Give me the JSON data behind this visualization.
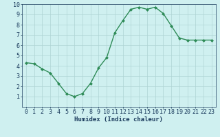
{
  "x": [
    0,
    1,
    2,
    3,
    4,
    5,
    6,
    7,
    8,
    9,
    10,
    11,
    12,
    13,
    14,
    15,
    16,
    17,
    18,
    19,
    20,
    21,
    22,
    23
  ],
  "y": [
    4.3,
    4.2,
    3.7,
    3.3,
    2.3,
    1.3,
    1.0,
    1.3,
    2.3,
    3.8,
    4.8,
    7.2,
    8.4,
    9.5,
    9.7,
    9.5,
    9.7,
    9.1,
    7.9,
    6.7,
    6.5,
    6.5,
    6.5,
    6.5
  ],
  "line_color": "#2e8b57",
  "marker": "D",
  "marker_size": 2.0,
  "line_width": 1.0,
  "bg_color": "#cff0f0",
  "grid_color": "#aed4d4",
  "xlabel": "Humidex (Indice chaleur)",
  "xlim": [
    -0.5,
    23.5
  ],
  "ylim": [
    0,
    10
  ],
  "xticks": [
    0,
    1,
    2,
    3,
    4,
    5,
    6,
    7,
    8,
    9,
    10,
    11,
    12,
    13,
    14,
    15,
    16,
    17,
    18,
    19,
    20,
    21,
    22,
    23
  ],
  "yticks": [
    1,
    2,
    3,
    4,
    5,
    6,
    7,
    8,
    9,
    10
  ],
  "xlabel_fontsize": 6.5,
  "tick_fontsize": 6.0,
  "tick_color": "#1a3a5c",
  "axis_color": "#1a3a5c",
  "bottom_bar_color": "#4a6a8a"
}
